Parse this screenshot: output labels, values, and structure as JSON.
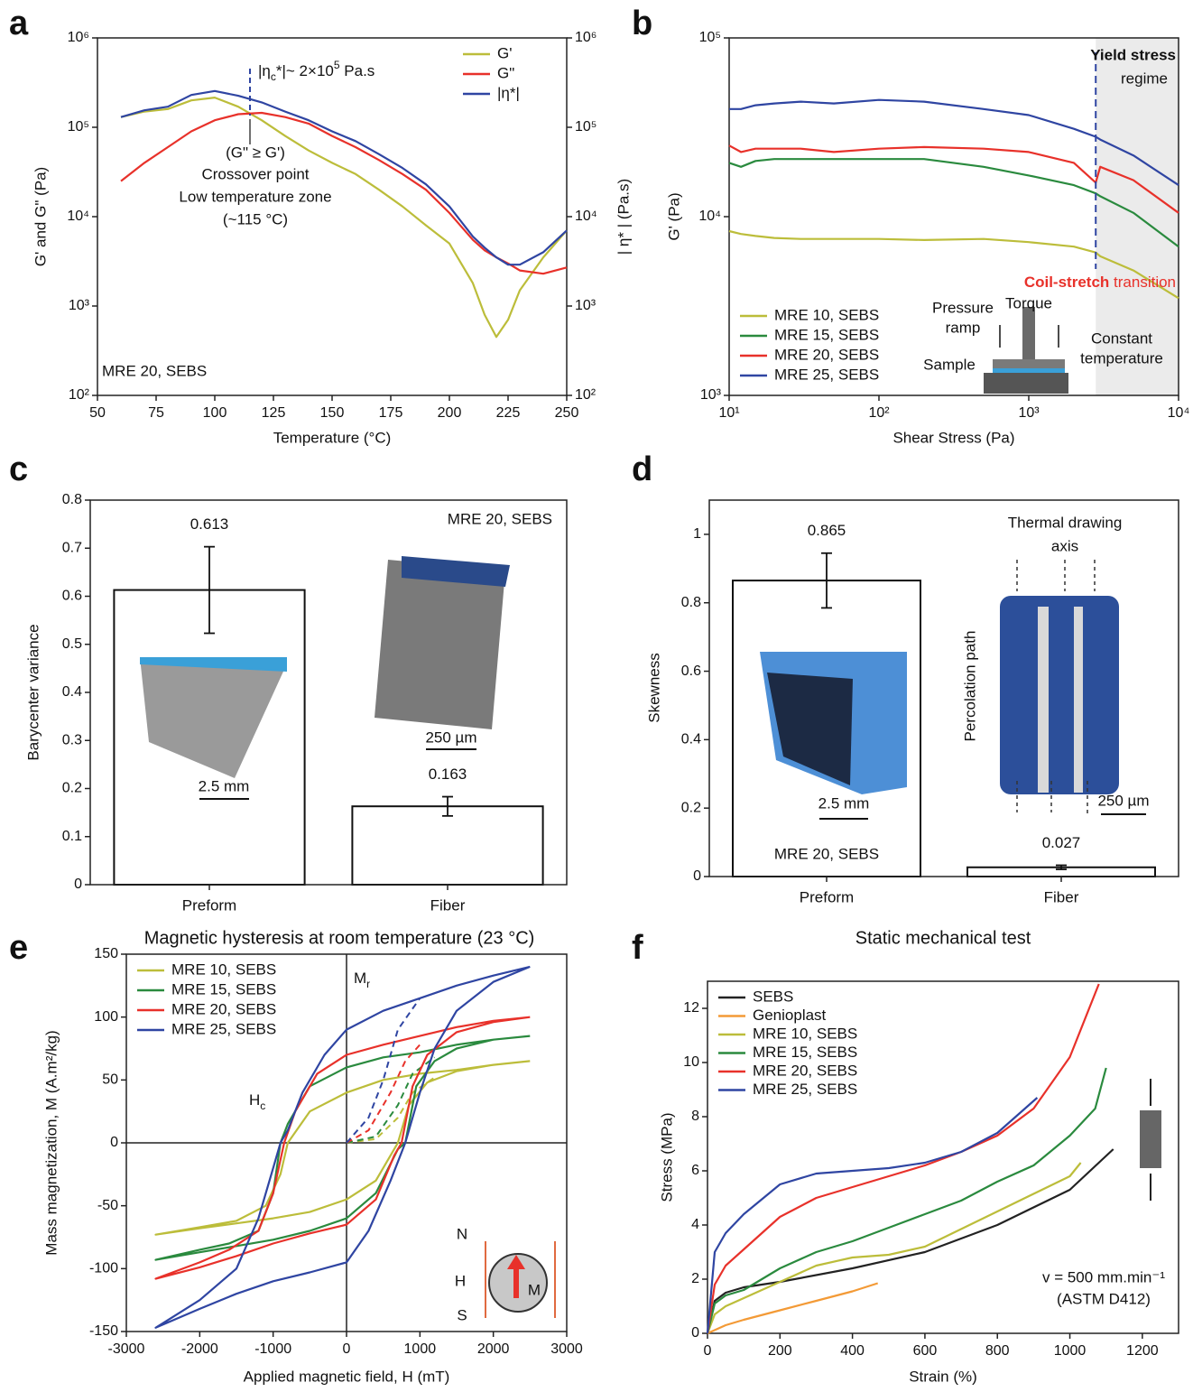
{
  "chart_data": [
    {
      "panel": "a",
      "type": "line",
      "xlabel": "Temperature (°C)",
      "ylabel": "G' and G\" (Pa)",
      "y2label": "| η* | (Pa.s)",
      "x": [
        60,
        70,
        80,
        90,
        100,
        110,
        120,
        130,
        140,
        150,
        160,
        170,
        180,
        190,
        200,
        210,
        215,
        220,
        225,
        230,
        240,
        250
      ],
      "xlim": [
        50,
        250
      ],
      "xticks": [
        50,
        75,
        100,
        125,
        150,
        175,
        200,
        225,
        250
      ],
      "ylim": [
        100,
        1000000
      ],
      "ylog": true,
      "yticks": [
        {
          "value": 100,
          "label": "10²"
        },
        {
          "value": 1000,
          "label": "10³"
        },
        {
          "value": 10000,
          "label": "10⁴"
        },
        {
          "value": 100000,
          "label": "10⁵"
        },
        {
          "value": 1000000,
          "label": "10⁶"
        }
      ],
      "y2lim": [
        100,
        1000000
      ],
      "y2log": true,
      "y2ticks": [
        {
          "value": 100,
          "label": "10²"
        },
        {
          "value": 1000,
          "label": "10³"
        },
        {
          "value": 10000,
          "label": "10⁴"
        },
        {
          "value": 100000,
          "label": "10⁵"
        },
        {
          "value": 1000000,
          "label": "10⁶"
        }
      ],
      "legend": "upper right",
      "series": [
        {
          "name": "G'",
          "color": "#bcbd3a",
          "values": [
            130000,
            150000,
            160000,
            200000,
            215000,
            170000,
            120000,
            80000,
            55000,
            40000,
            30000,
            20000,
            13000,
            8000,
            5000,
            1800,
            800,
            450,
            700,
            1500,
            3500,
            7000
          ]
        },
        {
          "name": "G\"",
          "color": "#e8312a",
          "values": [
            25000,
            40000,
            60000,
            90000,
            120000,
            140000,
            145000,
            130000,
            110000,
            80000,
            60000,
            43000,
            30000,
            20000,
            11000,
            5500,
            4200,
            3500,
            3000,
            2500,
            2300,
            2700
          ]
        },
        {
          "name": "|η*|",
          "color": "#2f45a2",
          "axis": "y2",
          "values": [
            130000,
            155000,
            170000,
            230000,
            255000,
            225000,
            190000,
            150000,
            120000,
            90000,
            70000,
            50000,
            35000,
            23000,
            13000,
            6000,
            4500,
            3500,
            2900,
            2900,
            4000,
            7000
          ]
        }
      ],
      "crossover_x": 115,
      "annotations": [
        {
          "parts": [
            "|η",
            "c",
            "*|~ 2×10",
            "5",
            " Pa.s"
          ]
        },
        {
          "text": "(G\" ≥ G')"
        },
        {
          "text": "Crossover point"
        },
        {
          "text": "Low temperature zone",
          "color": "#e8312a"
        },
        {
          "text": "(~115 °C)",
          "color": "#e8312a"
        },
        {
          "text": "MRE 20, SEBS"
        }
      ]
    },
    {
      "panel": "b",
      "type": "line",
      "xlabel": "Shear Stress (Pa)",
      "ylabel": "G' (Pa)",
      "x": [
        10,
        12,
        15,
        20,
        30,
        50,
        100,
        200,
        500,
        1000,
        2000,
        2800,
        3000,
        5000,
        10000
      ],
      "xlim": [
        10,
        10000
      ],
      "xlog": true,
      "xticks": [
        {
          "value": 10,
          "label": "10¹"
        },
        {
          "value": 100,
          "label": "10²"
        },
        {
          "value": 1000,
          "label": "10³"
        },
        {
          "value": 10000,
          "label": "10⁴"
        }
      ],
      "ylim": [
        1000,
        100000
      ],
      "ylog": true,
      "yticks": [
        {
          "value": 1000,
          "label": "10³"
        },
        {
          "value": 10000,
          "label": "10⁴"
        },
        {
          "value": 100000,
          "label": "10⁵"
        }
      ],
      "legend": "lower left",
      "yield_stress": 2800,
      "series": [
        {
          "name": "MRE 10, SEBS",
          "color": "#bcbd3a",
          "values": [
            8300,
            8000,
            7800,
            7600,
            7500,
            7500,
            7500,
            7400,
            7500,
            7200,
            6800,
            6300,
            6000,
            5000,
            3500
          ]
        },
        {
          "name": "MRE 15, SEBS",
          "color": "#2a8a3e",
          "values": [
            20000,
            19000,
            20500,
            21000,
            21000,
            21000,
            21000,
            21000,
            19000,
            17000,
            15000,
            13500,
            13000,
            10500,
            6800
          ]
        },
        {
          "name": "MRE 20, SEBS",
          "color": "#e8312a",
          "values": [
            25000,
            23000,
            24000,
            24000,
            24000,
            23000,
            24000,
            24500,
            24000,
            23000,
            20000,
            15500,
            19000,
            16000,
            10500
          ]
        },
        {
          "name": "MRE 25, SEBS",
          "color": "#2f45a2",
          "values": [
            40000,
            40000,
            42000,
            43000,
            44000,
            43000,
            45000,
            44000,
            40000,
            37000,
            31000,
            28000,
            27000,
            22000,
            15000
          ]
        }
      ],
      "annotations": [
        {
          "text": "Yield stress"
        },
        {
          "text": "regime"
        },
        {
          "parts": [
            "Coil-stretch",
            " transition"
          ]
        },
        {
          "text": "Pressure"
        },
        {
          "text": "ramp"
        },
        {
          "text": "Torque"
        },
        {
          "text": "Constant"
        },
        {
          "text": "temperature"
        },
        {
          "text": "Sample"
        }
      ]
    },
    {
      "panel": "c",
      "type": "bar",
      "ylabel": "Barycenter variance",
      "categories": [
        "Preform",
        "Fiber"
      ],
      "values": [
        0.613,
        0.163
      ],
      "errors": [
        0.09,
        0.02
      ],
      "color": "#ffffff",
      "edgecolor": "#111111",
      "ylim": [
        0,
        0.8
      ],
      "yticks": [
        0,
        0.1,
        0.2,
        0.3,
        0.4,
        0.5,
        0.6,
        0.7,
        0.8
      ],
      "annotations": [
        {
          "text": "MRE 20, SEBS"
        },
        {
          "text": "2.5 mm"
        },
        {
          "text": "250 µm"
        }
      ]
    },
    {
      "panel": "d",
      "type": "bar",
      "ylabel": "Skewness",
      "categories": [
        "Preform",
        "Fiber"
      ],
      "values": [
        0.865,
        0.027
      ],
      "errors": [
        0.08,
        0.006
      ],
      "color": "#ffffff",
      "edgecolor": "#111111",
      "ylim": [
        0,
        1.1
      ],
      "yticks": [
        0,
        0.2,
        0.4,
        0.6,
        0.8,
        1
      ],
      "annotations": [
        {
          "text": "Thermal drawing"
        },
        {
          "text": "axis"
        },
        {
          "text": "Percolation path"
        },
        {
          "text": "2.5 mm"
        },
        {
          "text": "250 µm"
        },
        {
          "text": "MRE 20, SEBS"
        }
      ]
    },
    {
      "panel": "e",
      "type": "line",
      "title": "Magnetic hysteresis at room temperature (23 °C)",
      "xlabel": "Applied magnetic field, H (mT)",
      "ylabel": "Mass magnetization, M (A.m²/kg)",
      "xlim": [
        -3000,
        3000
      ],
      "xticks": [
        -3000,
        -2000,
        -1000,
        0,
        1000,
        2000,
        3000
      ],
      "ylim": [
        -150,
        150
      ],
      "yticks": [
        -150,
        -100,
        -50,
        0,
        50,
        100,
        150
      ],
      "legend": "upper left",
      "series": [
        {
          "name": "MRE 10, SEBS",
          "color": "#bcbd3a",
          "x": [
            2500,
            2000,
            1500,
            1000,
            500,
            0,
            -500,
            -800,
            -900,
            -1100,
            -1500,
            -2000,
            -2600,
            -2000,
            -1500,
            -1000,
            -500,
            0,
            400,
            700,
            850,
            1100,
            1500,
            2000,
            2500
          ],
          "values": [
            65,
            62,
            58,
            55,
            50,
            40,
            25,
            0,
            -25,
            -50,
            -62,
            -67,
            -73,
            -68,
            -64,
            -60,
            -55,
            -45,
            -30,
            0,
            30,
            48,
            57,
            62,
            65
          ],
          "initial": {
            "x": [
              0,
              400,
              700,
              900,
              1200
            ],
            "values": [
              0,
              3,
              20,
              40,
              52
            ]
          }
        },
        {
          "name": "MRE 15, SEBS",
          "color": "#2a8a3e",
          "x": [
            2500,
            2000,
            1500,
            1000,
            500,
            0,
            -500,
            -800,
            -900,
            -1000,
            -1200,
            -1600,
            -2000,
            -2600,
            -2000,
            -1500,
            -1000,
            -500,
            0,
            400,
            700,
            800,
            950,
            1200,
            1500,
            2000,
            2500
          ],
          "values": [
            85,
            82,
            78,
            72,
            68,
            60,
            45,
            15,
            0,
            -40,
            -70,
            -80,
            -85,
            -93,
            -87,
            -82,
            -77,
            -70,
            -60,
            -40,
            -5,
            0,
            45,
            65,
            75,
            82,
            85
          ],
          "initial": {
            "x": [
              0,
              400,
              700,
              900,
              1200
            ],
            "values": [
              0,
              5,
              30,
              55,
              68
            ]
          }
        },
        {
          "name": "MRE 20, SEBS",
          "color": "#e8312a",
          "x": [
            2500,
            2000,
            1500,
            1000,
            500,
            0,
            -400,
            -700,
            -850,
            -1000,
            -1200,
            -1600,
            -2000,
            -2600,
            -2000,
            -1500,
            -1000,
            -500,
            0,
            400,
            650,
            750,
            900,
            1100,
            1500,
            2000,
            2500
          ],
          "values": [
            100,
            97,
            92,
            85,
            78,
            70,
            55,
            25,
            0,
            -40,
            -70,
            -85,
            -95,
            -108,
            -99,
            -90,
            -80,
            -72,
            -65,
            -45,
            -10,
            0,
            45,
            70,
            88,
            96,
            100
          ],
          "initial": {
            "x": [
              0,
              300,
              600,
              800,
              1000
            ],
            "values": [
              0,
              10,
              40,
              65,
              78
            ]
          }
        },
        {
          "name": "MRE 25, SEBS",
          "color": "#2f45a2",
          "x": [
            2500,
            2000,
            1500,
            1000,
            500,
            0,
            -300,
            -600,
            -800,
            -900,
            -1000,
            -1200,
            -1500,
            -2000,
            -2600,
            -2000,
            -1500,
            -1000,
            -500,
            0,
            300,
            600,
            800,
            1000,
            1200,
            1500,
            2000,
            2500
          ],
          "values": [
            140,
            133,
            125,
            115,
            105,
            90,
            70,
            40,
            10,
            0,
            -20,
            -60,
            -100,
            -125,
            -147,
            -132,
            -120,
            -110,
            -103,
            -95,
            -70,
            -30,
            0,
            40,
            75,
            105,
            128,
            140
          ],
          "initial": {
            "x": [
              0,
              300,
              500,
              700,
              1000
            ],
            "values": [
              0,
              20,
              50,
              90,
              115
            ]
          }
        }
      ],
      "annotations": [
        {
          "parts": [
            "M",
            "r"
          ]
        },
        {
          "parts": [
            "H",
            "c"
          ]
        },
        {
          "text": "N",
          "color": "#e8312a"
        },
        {
          "text": "S",
          "color": "#1e9be0"
        },
        {
          "text": "H"
        },
        {
          "text": "M"
        }
      ]
    },
    {
      "panel": "f",
      "type": "line",
      "title": "Static mechanical test",
      "xlabel": "Strain (%)",
      "ylabel": "Stress (MPa)",
      "xlim": [
        0,
        1300
      ],
      "xticks": [
        0,
        200,
        400,
        600,
        800,
        1000,
        1200
      ],
      "ylim": [
        0,
        13
      ],
      "yticks": [
        0,
        2,
        4,
        6,
        8,
        10,
        12
      ],
      "legend": "upper left",
      "series": [
        {
          "name": "SEBS",
          "color": "#222222",
          "x": [
            0,
            20,
            50,
            100,
            200,
            400,
            600,
            800,
            1000,
            1120
          ],
          "values": [
            0,
            1.2,
            1.5,
            1.7,
            1.9,
            2.4,
            3.0,
            4.0,
            5.3,
            6.8
          ]
        },
        {
          "name": "Genioplast",
          "color": "#f39a36",
          "x": [
            0,
            50,
            100,
            200,
            300,
            400,
            470
          ],
          "values": [
            0,
            0.3,
            0.5,
            0.85,
            1.2,
            1.55,
            1.85
          ]
        },
        {
          "name": "MRE 10, SEBS",
          "color": "#bcbd3a",
          "x": [
            0,
            20,
            50,
            100,
            200,
            300,
            400,
            500,
            600,
            800,
            1000,
            1030
          ],
          "values": [
            0,
            0.7,
            1.0,
            1.3,
            1.9,
            2.5,
            2.8,
            2.9,
            3.2,
            4.5,
            5.8,
            6.3
          ]
        },
        {
          "name": "MRE 15, SEBS",
          "color": "#2a8a3e",
          "x": [
            0,
            20,
            50,
            100,
            200,
            300,
            400,
            500,
            600,
            700,
            800,
            900,
            1000,
            1070,
            1100
          ],
          "values": [
            0,
            1.1,
            1.4,
            1.6,
            2.4,
            3.0,
            3.4,
            3.9,
            4.4,
            4.9,
            5.6,
            6.2,
            7.3,
            8.3,
            9.8
          ]
        },
        {
          "name": "MRE 20, SEBS",
          "color": "#e8312a",
          "x": [
            0,
            20,
            50,
            100,
            200,
            300,
            400,
            500,
            600,
            700,
            800,
            900,
            1000,
            1080
          ],
          "values": [
            0,
            1.8,
            2.5,
            3.1,
            4.3,
            5.0,
            5.4,
            5.8,
            6.2,
            6.7,
            7.3,
            8.3,
            10.2,
            12.9
          ]
        },
        {
          "name": "MRE 25, SEBS",
          "color": "#2f45a2",
          "x": [
            0,
            20,
            50,
            100,
            200,
            300,
            400,
            500,
            600,
            700,
            800,
            910
          ],
          "values": [
            0,
            3.0,
            3.7,
            4.4,
            5.5,
            5.9,
            6.0,
            6.1,
            6.3,
            6.7,
            7.4,
            8.7
          ]
        }
      ],
      "annotations": [
        {
          "text": "v = 500 mm.min⁻¹"
        },
        {
          "text": "(ASTM D412)"
        }
      ]
    }
  ]
}
